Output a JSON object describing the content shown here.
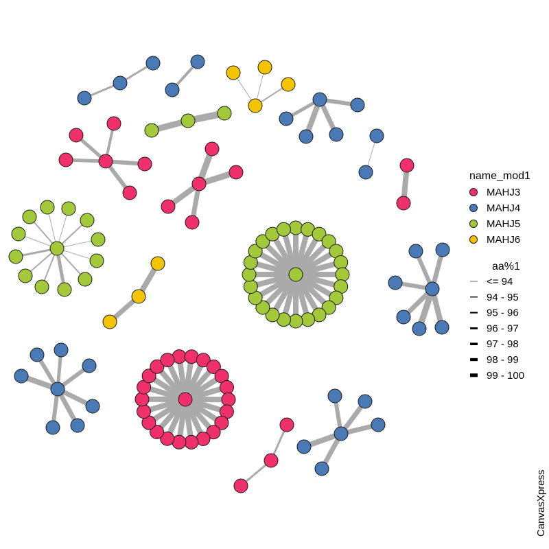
{
  "watermark": "CanvasXpress",
  "node_legend": {
    "title": "name_mod1",
    "items": [
      {
        "label": "MAHJ3",
        "color": "#f0306a"
      },
      {
        "label": "MAHJ4",
        "color": "#4a7ab5"
      },
      {
        "label": "MAHJ5",
        "color": "#a2c93a"
      },
      {
        "label": "MAHJ6",
        "color": "#f5c400"
      }
    ]
  },
  "edge_legend": {
    "title": "aa%1",
    "items": [
      "<= 94",
      "94 - 95",
      "95 - 96",
      "96 - 97",
      "97 - 98",
      "98 - 99",
      "99 - 100"
    ]
  },
  "edge_color": "#aaaaaa"
}
